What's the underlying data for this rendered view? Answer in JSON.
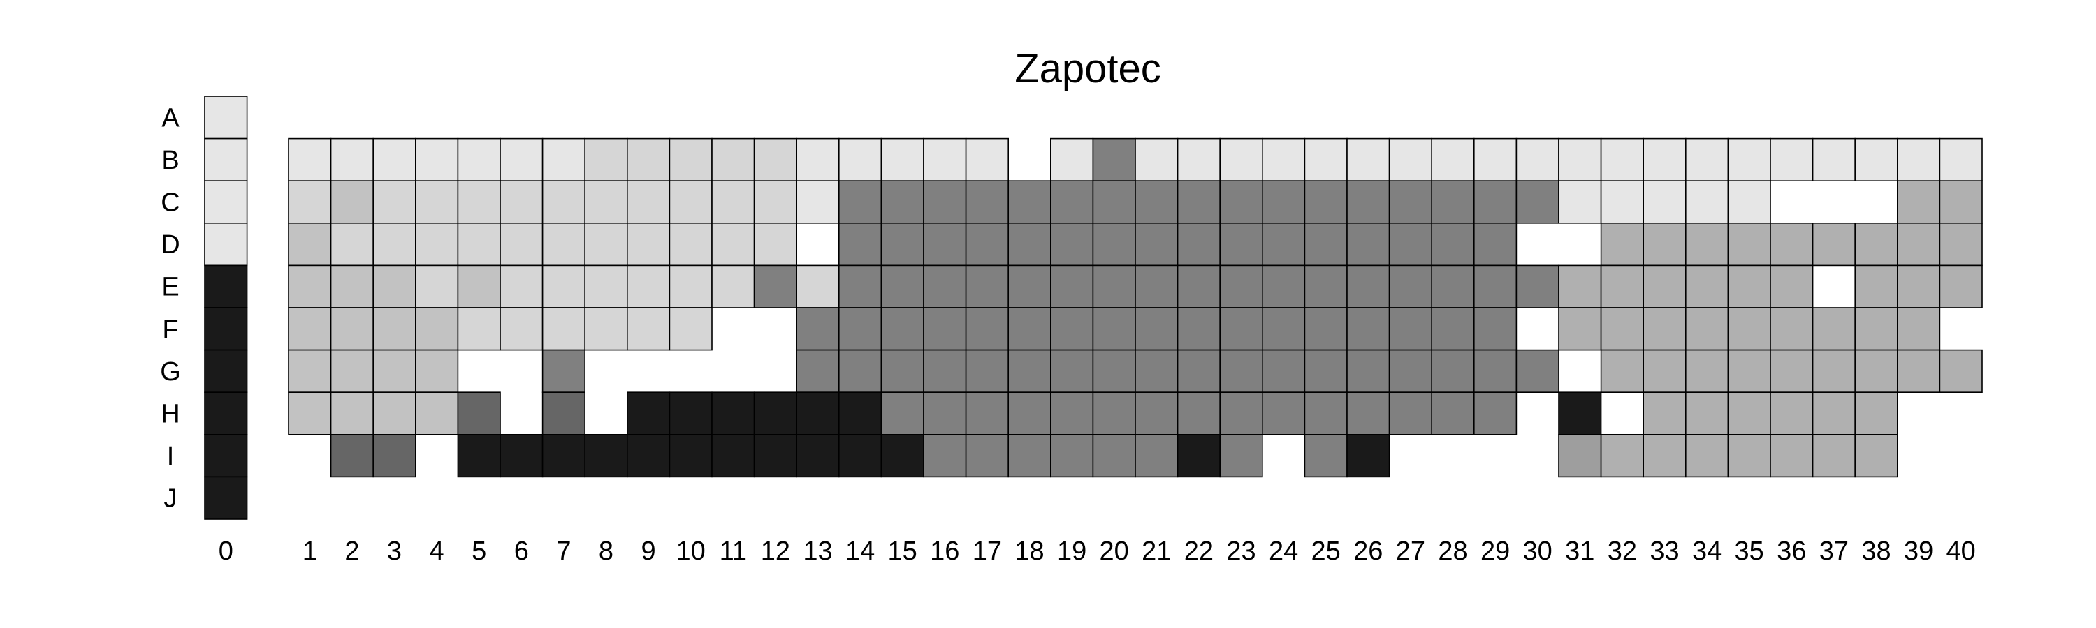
{
  "chart_data": {
    "type": "heatmap",
    "title": "Zapotec",
    "xlabel": "",
    "ylabel": "",
    "x_ticks": [
      "0",
      "1",
      "2",
      "3",
      "4",
      "5",
      "6",
      "7",
      "8",
      "9",
      "10",
      "11",
      "12",
      "13",
      "14",
      "15",
      "16",
      "17",
      "18",
      "19",
      "20",
      "21",
      "22",
      "23",
      "24",
      "25",
      "26",
      "27",
      "28",
      "29",
      "30",
      "31",
      "32",
      "33",
      "34",
      "35",
      "36",
      "37",
      "38",
      "39",
      "40"
    ],
    "y_ticks": [
      "A",
      "B",
      "C",
      "D",
      "E",
      "F",
      "G",
      "H",
      "I",
      "J"
    ],
    "palette": {
      "1": "#e6e6e6",
      "2": "#d6d6d6",
      "3": "#c2c2c2",
      "4": "#b0b0b0",
      "5": "#9e9e9e",
      "6": "#808080",
      "7": "#666666",
      "8": "#1a1a1a"
    },
    "column0": [
      1,
      1,
      1,
      1,
      8,
      8,
      8,
      8,
      8,
      8
    ],
    "grid_rows": [
      "B",
      "C",
      "D",
      "E",
      "F",
      "G",
      "H",
      "I"
    ],
    "grid": [
      "1111111222221111101611111111111111111111",
      "2322222222221666666666666666661111100044",
      "3222222222220666666666666666600444444444",
      "3332322222262666666666666666664444440444",
      "333322222200666666666666666660444444444",
      "3333006000006666666666666666660444444444",
      "3333707088888866666666666666608044444400",
      "0770888888888886666668606800005444444400"
    ]
  }
}
